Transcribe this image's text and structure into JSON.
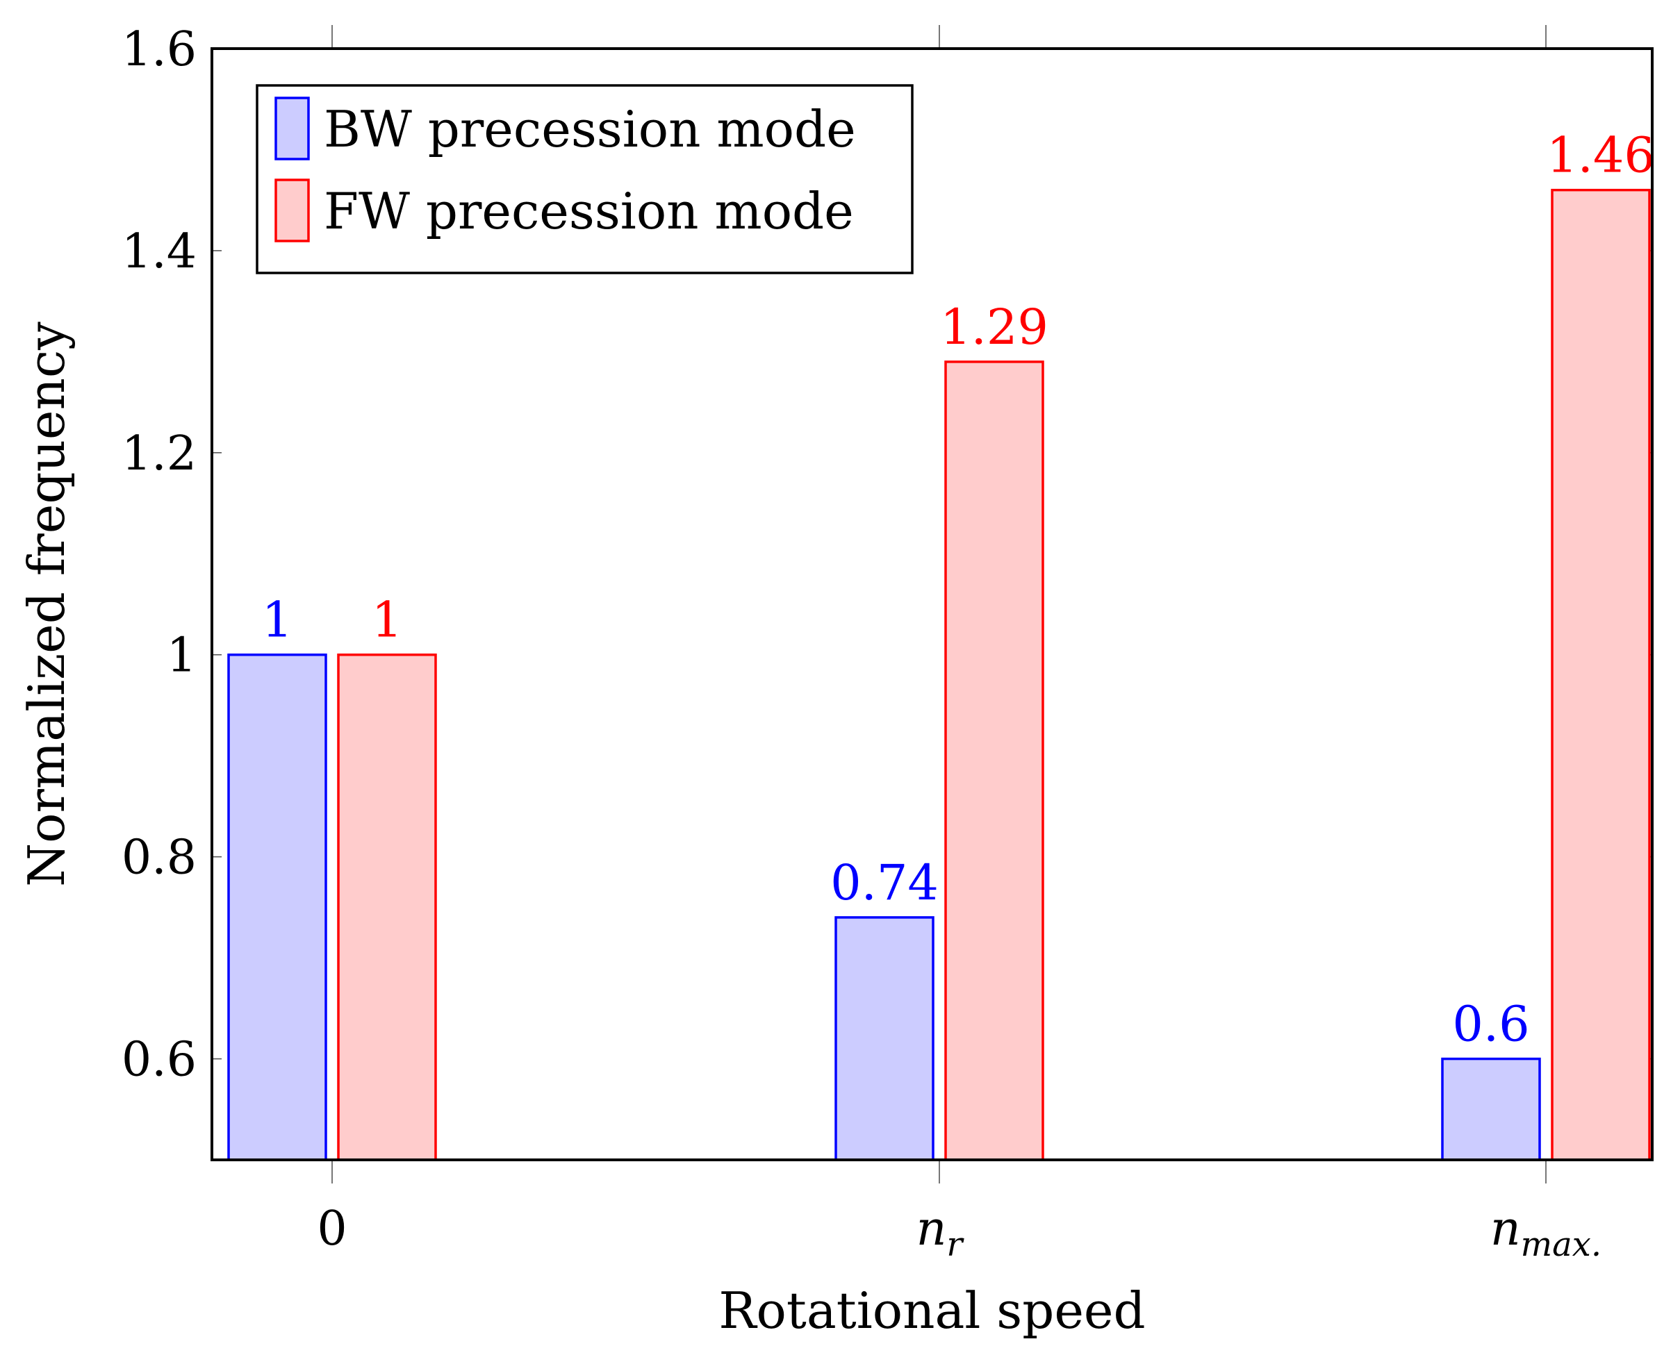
{
  "chart_data": {
    "type": "bar",
    "xlabel": "Rotational speed",
    "ylabel": "Normalized frequency",
    "categories": [
      {
        "base": "0",
        "sub": ""
      },
      {
        "base": "n",
        "sub": "r"
      },
      {
        "base": "n",
        "sub": "max."
      }
    ],
    "ylim": [
      0.5,
      1.6
    ],
    "yticks": [
      0.6,
      0.8,
      1.0,
      1.2,
      1.4,
      1.6
    ],
    "ytick_labels": [
      "0.6",
      "0.8",
      "1",
      "1.2",
      "1.4",
      "1.6"
    ],
    "series": [
      {
        "name": "BW precession mode",
        "values": [
          1,
          0.74,
          0.6
        ],
        "labels": [
          "1",
          "0.74",
          "0.6"
        ],
        "stroke": "#0000ff",
        "fill": "#ccccff"
      },
      {
        "name": "FW precession mode",
        "values": [
          1,
          1.29,
          1.46
        ],
        "labels": [
          "1",
          "1.29",
          "1.46"
        ],
        "stroke": "#ff0000",
        "fill": "#ffcccc"
      }
    ],
    "legend_position": "top-left",
    "grid": false
  }
}
